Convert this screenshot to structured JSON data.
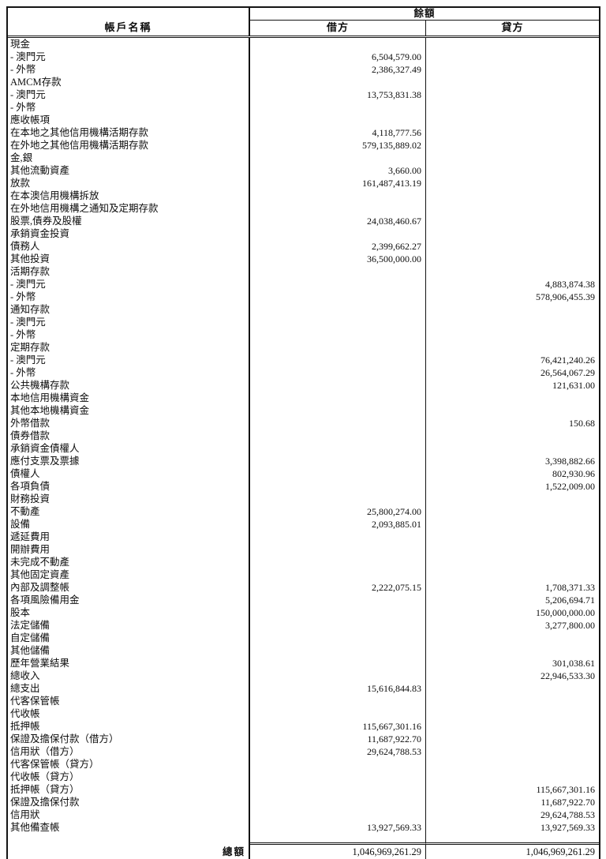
{
  "colors": {
    "background": "#ffffff",
    "text": "#0d0d0d",
    "border": "#141414"
  },
  "header": {
    "account_label": "帳戶名稱",
    "balance_label": "餘額",
    "debit_label": "借方",
    "credit_label": "貸方"
  },
  "rows": [
    {
      "name": "現金",
      "debit": "",
      "credit": ""
    },
    {
      "name": "- 澳門元",
      "debit": "6,504,579.00",
      "credit": ""
    },
    {
      "name": "- 外幣",
      "debit": "2,386,327.49",
      "credit": ""
    },
    {
      "name": "AMCM存款",
      "debit": "",
      "credit": ""
    },
    {
      "name": "- 澳門元",
      "debit": "13,753,831.38",
      "credit": ""
    },
    {
      "name": "- 外幣",
      "debit": "",
      "credit": ""
    },
    {
      "name": "應收帳項",
      "debit": "",
      "credit": ""
    },
    {
      "name": "在本地之其他信用機構活期存款",
      "debit": "4,118,777.56",
      "credit": ""
    },
    {
      "name": "在外地之其他信用機構活期存款",
      "debit": "579,135,889.02",
      "credit": ""
    },
    {
      "name": "金,銀",
      "debit": "",
      "credit": ""
    },
    {
      "name": "其他流動資產",
      "debit": "3,660.00",
      "credit": ""
    },
    {
      "name": "放款",
      "debit": "161,487,413.19",
      "credit": ""
    },
    {
      "name": "在本澳信用機構拆放",
      "debit": "",
      "credit": ""
    },
    {
      "name": "在外地信用機構之通知及定期存款",
      "debit": "",
      "credit": ""
    },
    {
      "name": "股票,債券及股權",
      "debit": "24,038,460.67",
      "credit": ""
    },
    {
      "name": "承銷資金投資",
      "debit": "",
      "credit": ""
    },
    {
      "name": "債務人",
      "debit": "2,399,662.27",
      "credit": ""
    },
    {
      "name": "其他投資",
      "debit": "36,500,000.00",
      "credit": ""
    },
    {
      "name": "活期存款",
      "debit": "",
      "credit": ""
    },
    {
      "name": "- 澳門元",
      "debit": "",
      "credit": "4,883,874.38"
    },
    {
      "name": "- 外幣",
      "debit": "",
      "credit": "578,906,455.39"
    },
    {
      "name": "通知存款",
      "debit": "",
      "credit": ""
    },
    {
      "name": "- 澳門元",
      "debit": "",
      "credit": ""
    },
    {
      "name": "- 外幣",
      "debit": "",
      "credit": ""
    },
    {
      "name": "定期存款",
      "debit": "",
      "credit": ""
    },
    {
      "name": "- 澳門元",
      "debit": "",
      "credit": "76,421,240.26"
    },
    {
      "name": "- 外幣",
      "debit": "",
      "credit": "26,564,067.29"
    },
    {
      "name": "公共機構存款",
      "debit": "",
      "credit": "121,631.00"
    },
    {
      "name": "本地信用機構資金",
      "debit": "",
      "credit": ""
    },
    {
      "name": "其他本地機構資金",
      "debit": "",
      "credit": ""
    },
    {
      "name": "外幣借款",
      "debit": "",
      "credit": "150.68"
    },
    {
      "name": "債券借款",
      "debit": "",
      "credit": ""
    },
    {
      "name": "承銷資金債權人",
      "debit": "",
      "credit": ""
    },
    {
      "name": "應付支票及票據",
      "debit": "",
      "credit": "3,398,882.66"
    },
    {
      "name": "債權人",
      "debit": "",
      "credit": "802,930.96"
    },
    {
      "name": "各項負債",
      "debit": "",
      "credit": "1,522,009.00"
    },
    {
      "name": "財務投資",
      "debit": "",
      "credit": ""
    },
    {
      "name": "不動產",
      "debit": "25,800,274.00",
      "credit": ""
    },
    {
      "name": "設備",
      "debit": "2,093,885.01",
      "credit": ""
    },
    {
      "name": "遞延費用",
      "debit": "",
      "credit": ""
    },
    {
      "name": "開辦費用",
      "debit": "",
      "credit": ""
    },
    {
      "name": "未完成不動產",
      "debit": "",
      "credit": ""
    },
    {
      "name": "其他固定資產",
      "debit": "",
      "credit": ""
    },
    {
      "name": "內部及調整帳",
      "debit": "2,222,075.15",
      "credit": "1,708,371.33"
    },
    {
      "name": "各項風險備用金",
      "debit": "",
      "credit": "5,206,694.71"
    },
    {
      "name": "股本",
      "debit": "",
      "credit": "150,000,000.00"
    },
    {
      "name": "法定儲備",
      "debit": "",
      "credit": "3,277,800.00"
    },
    {
      "name": "自定儲備",
      "debit": "",
      "credit": ""
    },
    {
      "name": "其他儲備",
      "debit": "",
      "credit": ""
    },
    {
      "name": "歷年營業結果",
      "debit": "",
      "credit": "301,038.61"
    },
    {
      "name": "總收入",
      "debit": "",
      "credit": "22,946,533.30"
    },
    {
      "name": "總支出",
      "debit": "15,616,844.83",
      "credit": ""
    },
    {
      "name": "代客保管帳",
      "debit": "",
      "credit": ""
    },
    {
      "name": "代收帳",
      "debit": "",
      "credit": ""
    },
    {
      "name": "抵押帳",
      "debit": "115,667,301.16",
      "credit": ""
    },
    {
      "name": "保證及擔保付款（借方）",
      "debit": "11,687,922.70",
      "credit": ""
    },
    {
      "name": "信用狀（借方）",
      "debit": "29,624,788.53",
      "credit": ""
    },
    {
      "name": "代客保管帳（貸方）",
      "debit": "",
      "credit": ""
    },
    {
      "name": "代收帳（貸方）",
      "debit": "",
      "credit": ""
    },
    {
      "name": "抵押帳（貸方）",
      "debit": "",
      "credit": "115,667,301.16"
    },
    {
      "name": "保證及擔保付款",
      "debit": "",
      "credit": "11,687,922.70"
    },
    {
      "name": "信用狀",
      "debit": "",
      "credit": "29,624,788.53"
    },
    {
      "name": "其他備查帳",
      "debit": "13,927,569.33",
      "credit": "13,927,569.33"
    }
  ],
  "total": {
    "label": "總額",
    "debit": "1,046,969,261.29",
    "credit": "1,046,969,261.29"
  }
}
